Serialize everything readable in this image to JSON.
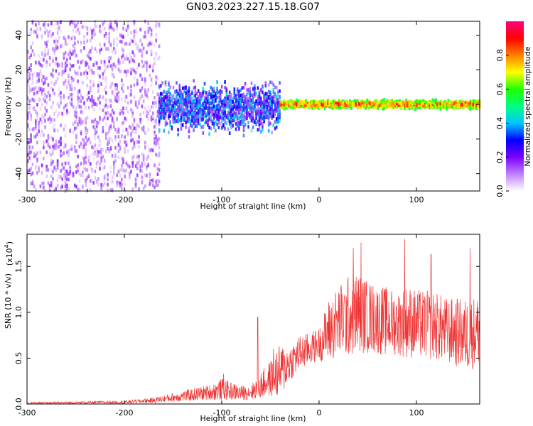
{
  "title": "GN03.2023.227.15.18.G07",
  "chart_data": [
    {
      "type": "heatmap",
      "xlabel": "Height of straight line (km)",
      "ylabel": "Frequency (Hz)",
      "xlim": [
        -300,
        165
      ],
      "ylim": [
        -50,
        48
      ],
      "xticks": [
        -300,
        -200,
        -100,
        0,
        100
      ],
      "xtick_labels": [
        "-300",
        "-200",
        "-100",
        "0",
        "100"
      ],
      "yticks": [
        -40,
        -20,
        0,
        20,
        40
      ],
      "ytick_labels": [
        "-40",
        "-20",
        "0",
        "20",
        "40"
      ],
      "colorbar": {
        "label": "Normalized spectral amplitude",
        "range": [
          0,
          1
        ],
        "ticks": [
          0.0,
          0.2,
          0.4,
          0.6,
          0.8
        ],
        "tick_labels": [
          "0.0",
          "0.2",
          "0.4",
          "0.6",
          "0.8"
        ],
        "colors": [
          "#ffffff",
          "#c080ff",
          "#7b00ff",
          "#0000ff",
          "#00c8ff",
          "#00ff80",
          "#20ff00",
          "#ffff00",
          "#ff8000",
          "#ff0000",
          "#ff0080"
        ]
      },
      "regions": [
        {
          "x_range": [
            -300,
            -165
          ],
          "freq_center": 0,
          "freq_spread": 50,
          "amplitude": [
            0.03,
            0.18
          ],
          "density": "high"
        },
        {
          "x_range": [
            -165,
            -40
          ],
          "freq_center": -2,
          "freq_spread": 18,
          "amplitude": [
            0.1,
            0.45
          ],
          "density": "high"
        },
        {
          "x_range": [
            -40,
            165
          ],
          "freq_center": 0,
          "freq_spread": 3,
          "amplitude": [
            0.3,
            0.95
          ],
          "density": "narrow band"
        }
      ],
      "grid": false
    },
    {
      "type": "line",
      "xlabel": "Height of straight line (km)",
      "ylabel": "SNR (10 * v/v)",
      "multiplier_label": "(x10",
      "multiplier_exponent": "4",
      "multiplier_close": ")",
      "xlim": [
        -300,
        165
      ],
      "ylim": [
        0,
        1.85
      ],
      "xticks": [
        -300,
        -200,
        -100,
        0,
        100
      ],
      "xtick_labels": [
        "-300",
        "-200",
        "-100",
        "0",
        "100"
      ],
      "yticks": [
        0.0,
        0.5,
        1.0,
        1.5
      ],
      "ytick_labels": [
        "0.0",
        "0.5",
        "1.0",
        "1.5"
      ],
      "color": "#ee3333",
      "envelope": {
        "x": [
          -300,
          -250,
          -200,
          -170,
          -150,
          -130,
          -110,
          -100,
          -90,
          -80,
          -70,
          -60,
          -50,
          -40,
          -30,
          -20,
          -10,
          0,
          10,
          20,
          30,
          40,
          50,
          60,
          70,
          80,
          90,
          100,
          110,
          120,
          130,
          140,
          150,
          165
        ],
        "mean": [
          0.01,
          0.015,
          0.02,
          0.04,
          0.07,
          0.1,
          0.13,
          0.16,
          0.14,
          0.12,
          0.13,
          0.2,
          0.28,
          0.35,
          0.45,
          0.55,
          0.6,
          0.65,
          0.8,
          0.9,
          0.95,
          1.0,
          0.95,
          0.92,
          0.9,
          0.88,
          0.9,
          0.87,
          0.86,
          0.85,
          0.8,
          0.78,
          0.75,
          0.8
        ],
        "spread": [
          0.01,
          0.012,
          0.015,
          0.03,
          0.05,
          0.07,
          0.09,
          0.12,
          0.1,
          0.08,
          0.08,
          0.15,
          0.2,
          0.3,
          0.2,
          0.2,
          0.18,
          0.18,
          0.35,
          0.4,
          0.45,
          0.45,
          0.4,
          0.38,
          0.38,
          0.35,
          0.4,
          0.38,
          0.38,
          0.38,
          0.36,
          0.38,
          0.4,
          0.4
        ]
      },
      "peaks": [
        {
          "x": -98,
          "y": 0.33
        },
        {
          "x": -63,
          "y": 0.95
        },
        {
          "x": -47,
          "y": 0.6
        },
        {
          "x": 35,
          "y": 1.7
        },
        {
          "x": 43,
          "y": 1.76
        },
        {
          "x": 88,
          "y": 1.8
        },
        {
          "x": 115,
          "y": 1.63
        },
        {
          "x": 155,
          "y": 1.7
        }
      ],
      "grid": false
    }
  ]
}
